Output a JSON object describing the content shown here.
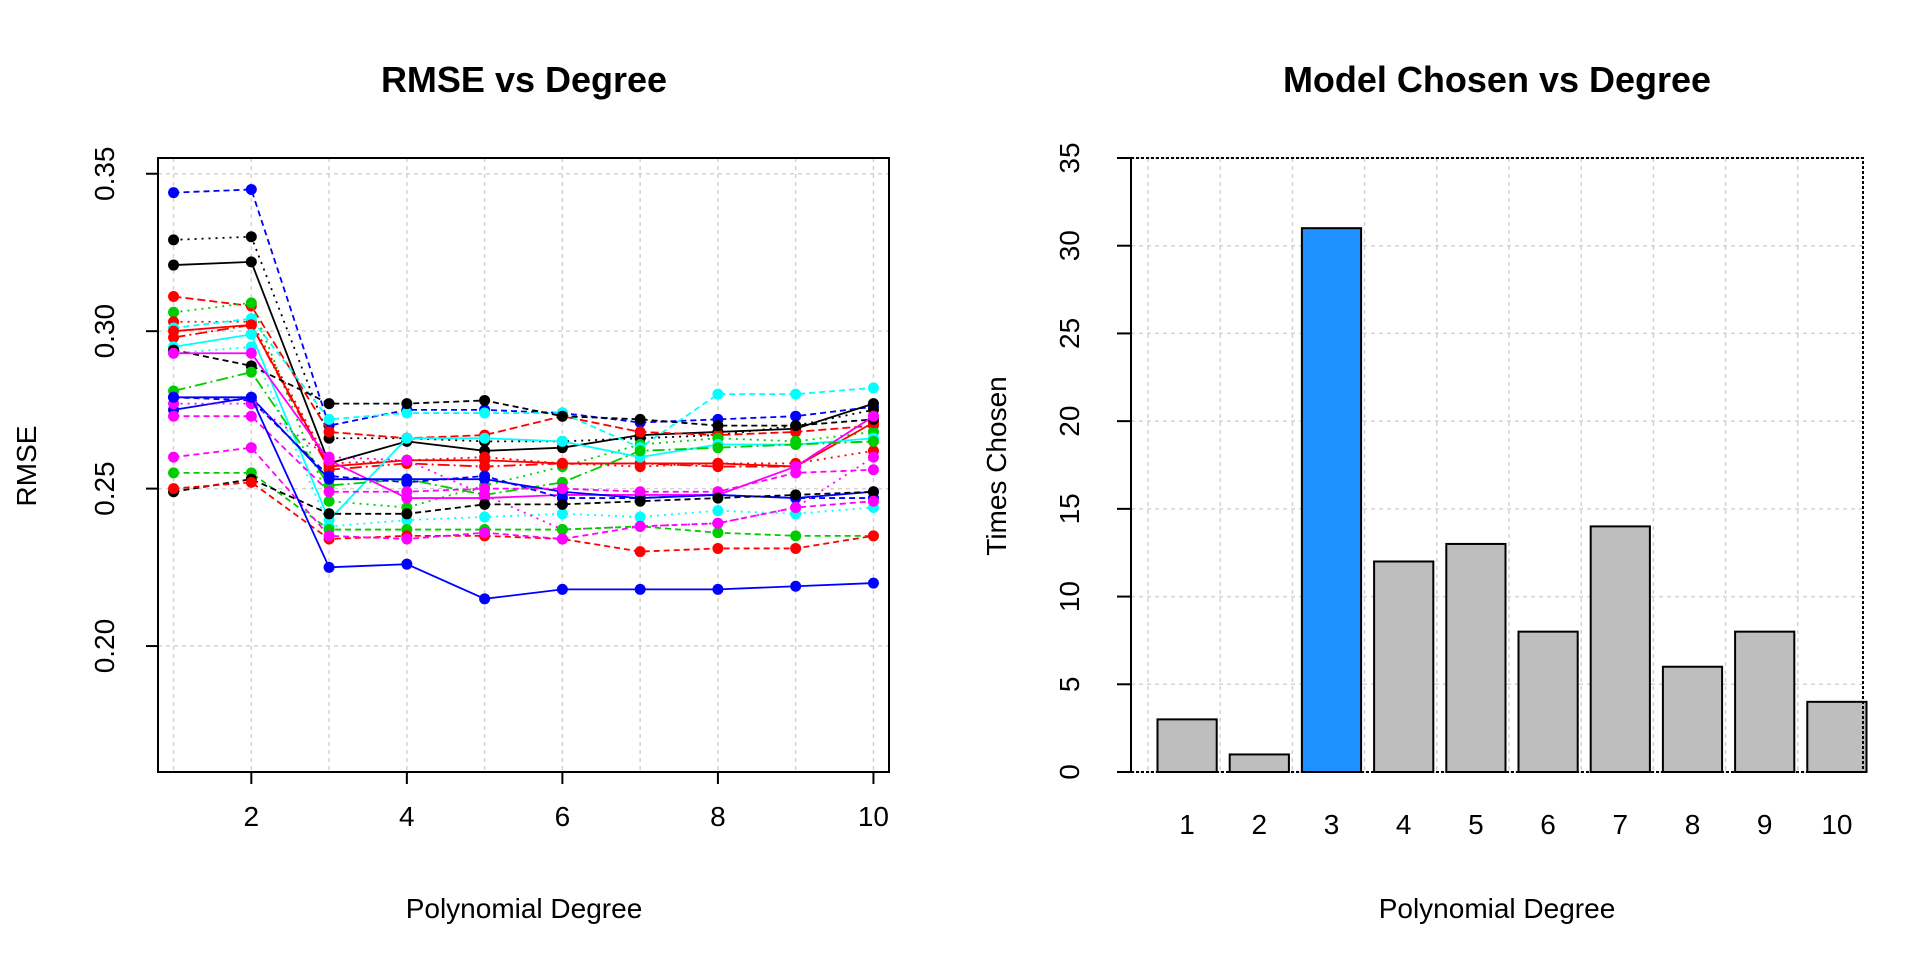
{
  "chart_data": [
    {
      "type": "line",
      "title": "RMSE vs Degree",
      "xlabel": "Polynomial Degree",
      "ylabel": "RMSE",
      "xlim": [
        0.8,
        10.2
      ],
      "ylim": [
        0.16,
        0.355
      ],
      "x": [
        1,
        2,
        3,
        4,
        5,
        6,
        7,
        8,
        9,
        10
      ],
      "x_ticks": [
        "2",
        "4",
        "6",
        "8",
        "10"
      ],
      "y_ticks": [
        "0.20",
        "0.25",
        "0.30",
        "0.35"
      ],
      "grid": true,
      "series": [
        {
          "color": "#0000ff",
          "dash": "6,4",
          "values": [
            0.344,
            0.345,
            0.27,
            0.275,
            0.275,
            0.274,
            0.271,
            0.272,
            0.273,
            0.276
          ]
        },
        {
          "color": "#000000",
          "dash": "2,5",
          "values": [
            0.329,
            0.33,
            0.266,
            0.266,
            0.265,
            0.265,
            0.266,
            0.267,
            0.27,
            0.275
          ]
        },
        {
          "color": "#000000",
          "dash": "",
          "values": [
            0.321,
            0.322,
            0.258,
            0.265,
            0.262,
            0.263,
            0.267,
            0.268,
            0.269,
            0.277
          ]
        },
        {
          "color": "#ff0000",
          "dash": "8,4",
          "values": [
            0.311,
            0.308,
            0.268,
            0.266,
            0.267,
            0.273,
            0.268,
            0.267,
            0.268,
            0.27
          ]
        },
        {
          "color": "#00cd00",
          "dash": "2,5",
          "values": [
            0.306,
            0.309,
            0.246,
            0.244,
            0.251,
            0.257,
            0.264,
            0.266,
            0.265,
            0.268
          ]
        },
        {
          "color": "#ff0000",
          "dash": "2,5",
          "values": [
            0.303,
            0.303,
            0.258,
            0.259,
            0.26,
            0.258,
            0.257,
            0.258,
            0.258,
            0.262
          ]
        },
        {
          "color": "#00ffff",
          "dash": "6,4",
          "values": [
            0.301,
            0.304,
            0.272,
            0.274,
            0.274,
            0.274,
            0.263,
            0.28,
            0.28,
            0.282
          ]
        },
        {
          "color": "#ff0000",
          "dash": "",
          "values": [
            0.3,
            0.302,
            0.257,
            0.259,
            0.259,
            0.258,
            0.258,
            0.258,
            0.257,
            0.271
          ]
        },
        {
          "color": "#ff0000",
          "dash": "12,4,2,4",
          "values": [
            0.298,
            0.302,
            0.256,
            0.258,
            0.257,
            0.258,
            0.258,
            0.257,
            0.257,
            0.273
          ]
        },
        {
          "color": "#00ffff",
          "dash": "",
          "values": [
            0.295,
            0.299,
            0.24,
            0.266,
            0.266,
            0.265,
            0.26,
            0.264,
            0.264,
            0.266
          ]
        },
        {
          "color": "#00ffff",
          "dash": "2,5",
          "values": [
            0.293,
            0.295,
            0.238,
            0.24,
            0.241,
            0.242,
            0.241,
            0.243,
            0.242,
            0.244
          ]
        },
        {
          "color": "#000000",
          "dash": "6,4",
          "values": [
            0.294,
            0.289,
            0.277,
            0.277,
            0.278,
            0.273,
            0.272,
            0.27,
            0.27,
            0.272
          ]
        },
        {
          "color": "#ff00ff",
          "dash": "",
          "values": [
            0.293,
            0.293,
            0.259,
            0.247,
            0.247,
            0.248,
            0.248,
            0.248,
            0.257,
            0.273
          ]
        },
        {
          "color": "#00cd00",
          "dash": "12,4,2,4",
          "values": [
            0.281,
            0.287,
            0.251,
            0.253,
            0.248,
            0.252,
            0.262,
            0.263,
            0.264,
            0.265
          ]
        },
        {
          "color": "#0000ff",
          "dash": "6,4",
          "values": [
            0.279,
            0.278,
            0.254,
            0.252,
            0.254,
            0.247,
            0.247,
            0.248,
            0.247,
            0.247
          ]
        },
        {
          "color": "#0000ff",
          "dash": "",
          "values": [
            0.275,
            0.279,
            0.253,
            0.253,
            0.253,
            0.249,
            0.247,
            0.248,
            0.247,
            0.249
          ]
        },
        {
          "color": "#ff00ff",
          "dash": "6,4",
          "values": [
            0.273,
            0.273,
            0.249,
            0.249,
            0.25,
            0.25,
            0.249,
            0.249,
            0.255,
            0.256
          ]
        },
        {
          "color": "#ff00ff",
          "dash": "2,5",
          "values": [
            0.277,
            0.277,
            0.26,
            0.259,
            0.248,
            0.237,
            0.238,
            0.239,
            0.244,
            0.26
          ]
        },
        {
          "color": "#00cd00",
          "dash": "6,4",
          "values": [
            0.255,
            0.255,
            0.237,
            0.237,
            0.237,
            0.237,
            0.238,
            0.236,
            0.235,
            0.235
          ]
        },
        {
          "color": "#000000",
          "dash": "6,4",
          "values": [
            0.249,
            0.253,
            0.242,
            0.242,
            0.245,
            0.245,
            0.246,
            0.247,
            0.248,
            0.249
          ]
        },
        {
          "color": "#ff0000",
          "dash": "6,4",
          "values": [
            0.25,
            0.252,
            0.234,
            0.235,
            0.235,
            0.234,
            0.23,
            0.231,
            0.231,
            0.235
          ]
        },
        {
          "color": "#ff00ff",
          "dash": "6,4",
          "values": [
            0.26,
            0.263,
            0.235,
            0.234,
            0.236,
            0.234,
            0.238,
            0.239,
            0.244,
            0.246
          ]
        },
        {
          "color": "#0000ff",
          "dash": "",
          "values": [
            0.279,
            0.279,
            0.225,
            0.226,
            0.215,
            0.218,
            0.218,
            0.218,
            0.219,
            0.22
          ]
        }
      ]
    },
    {
      "type": "bar",
      "title": "Model Chosen vs Degree",
      "xlabel": "Polynomial Degree",
      "ylabel": "Times Chosen",
      "categories": [
        "1",
        "2",
        "3",
        "4",
        "5",
        "6",
        "7",
        "8",
        "9",
        "10"
      ],
      "values": [
        3,
        1,
        31,
        12,
        13,
        8,
        14,
        6,
        8,
        4
      ],
      "highlight_index": 2,
      "bar_color": "#bebebe",
      "highlight_color": "#1e90ff",
      "ylim": [
        0,
        35
      ],
      "y_ticks": [
        "0",
        "5",
        "10",
        "15",
        "20",
        "25",
        "30",
        "35"
      ],
      "grid": true
    }
  ]
}
